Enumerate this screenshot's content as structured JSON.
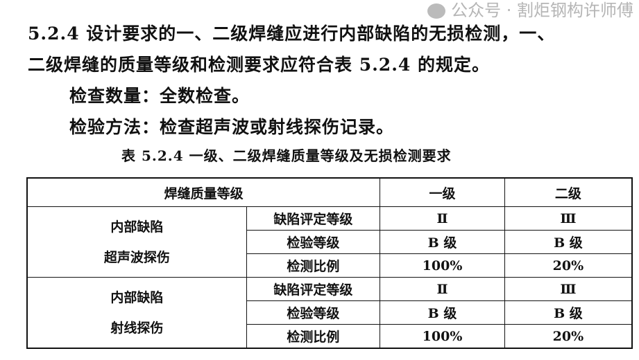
{
  "text": {
    "line1": "5.2.4  设计要求的一、二级焊缝应进行内部缺陷的无损检测，一、",
    "line2": "二级焊缝的质量等级和检测要求应符合表 5.2.4 的规定。",
    "line3": "检查数量：全数检查。",
    "line4": "检验方法：检查超声波或射线探伤记录。"
  },
  "table": {
    "caption": "表 5.2.4   一级、二级焊缝质量等级及无损检测要求",
    "header": {
      "label": "焊缝质量等级",
      "col1": "一级",
      "col2": "二级"
    },
    "groups": [
      {
        "name_line1": "内部缺陷",
        "name_line2": "超声波探伤",
        "rows": [
          {
            "item": "缺陷评定等级",
            "v1": "Ⅱ",
            "v2": "Ⅲ"
          },
          {
            "item": "检验等级",
            "v1": "B 级",
            "v2": "B 级"
          },
          {
            "item": "检测比例",
            "v1": "100%",
            "v2": "20%"
          }
        ]
      },
      {
        "name_line1": "内部缺陷",
        "name_line2": "射线探伤",
        "rows": [
          {
            "item": "缺陷评定等级",
            "v1": "Ⅱ",
            "v2": "Ⅲ"
          },
          {
            "item": "检验等级",
            "v1": "B 级",
            "v2": "B 级"
          },
          {
            "item": "检测比例",
            "v1": "100%",
            "v2": "20%"
          }
        ]
      }
    ]
  },
  "watermark": {
    "icon": "wechat-icon",
    "text": "公众号 · 割炬钢构许师傅"
  }
}
